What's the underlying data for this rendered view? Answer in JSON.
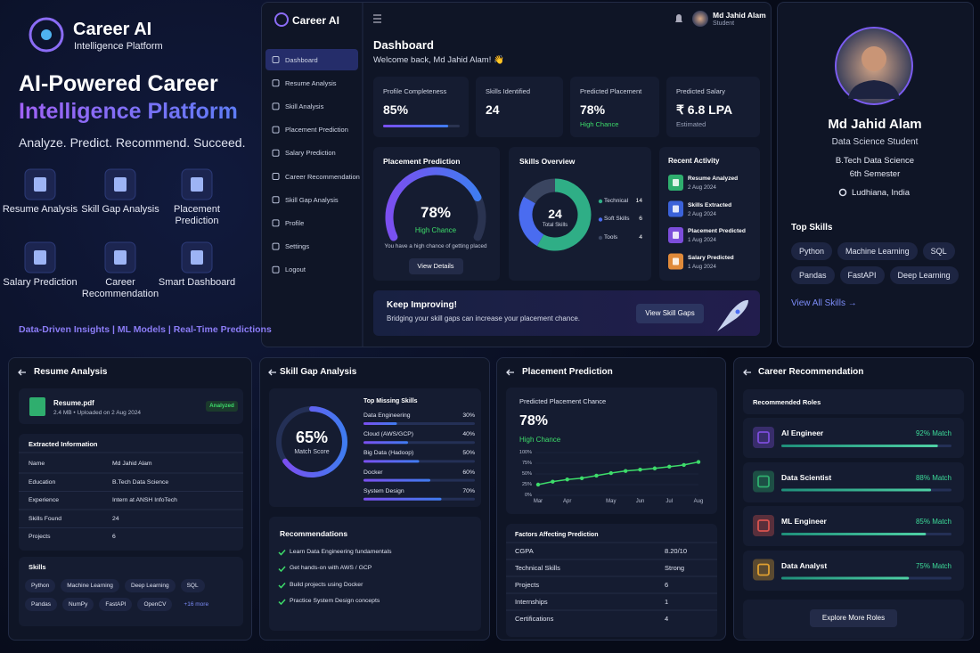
{
  "hero": {
    "brand": "Career AI",
    "brand_sub": "Intelligence Platform",
    "title_1": "AI-Powered Career",
    "title_2": "Intelligence Platform",
    "tagline": "Analyze. Predict. Recommend. Succeed.",
    "features": [
      "Resume Analysis",
      "Skill Gap Analysis",
      "Placement Prediction",
      "Salary Prediction",
      "Career Recommendation",
      "Smart Dashboard"
    ],
    "footer": "Data-Driven Insights | ML Models | Real-Time Predictions"
  },
  "app": {
    "brand": "Career AI",
    "nav": [
      "Dashboard",
      "Resume Analysis",
      "Skill Analysis",
      "Placement Prediction",
      "Salary Prediction",
      "Career Recommendation",
      "Skill Gap Analysis",
      "Profile",
      "Settings",
      "Logout"
    ],
    "user_name": "Md Jahid Alam",
    "user_role": "Student",
    "heading": "Dashboard",
    "welcome": "Welcome back, Md Jahid Alam! 👋",
    "stats": [
      {
        "label": "Profile Completeness",
        "value": 85,
        "value_label": "85%"
      },
      {
        "label": "Skills Identified",
        "value": 24
      },
      {
        "label": "Predicted Placement",
        "value": "78%",
        "note": "High Chance"
      },
      {
        "label": "Predicted Salary",
        "value": "₹ 6.8 LPA",
        "note": "Estimated"
      }
    ],
    "placement": {
      "title": "Placement Prediction",
      "value": 78,
      "value_label": "78%",
      "status": "High Chance",
      "note": "You have a high chance of getting placed",
      "button": "View Details"
    },
    "skills_overview": {
      "title": "Skills Overview",
      "total": 24,
      "total_label": "Total Skills",
      "segments": [
        {
          "name": "Technical",
          "value": 14,
          "color": "#2fae86"
        },
        {
          "name": "Soft Skills",
          "value": 6,
          "color": "#4a6cf0"
        },
        {
          "name": "Tools",
          "value": 4,
          "color": "#3a4560"
        }
      ]
    },
    "activity": {
      "title": "Recent Activity",
      "items": [
        {
          "title": "Resume Analyzed",
          "date": "2 Aug 2024",
          "color": "#2fae6e"
        },
        {
          "title": "Skills Extracted",
          "date": "2 Aug 2024",
          "color": "#3b62d9"
        },
        {
          "title": "Placement Predicted",
          "date": "1 Aug 2024",
          "color": "#7c4ddb"
        },
        {
          "title": "Salary Predicted",
          "date": "1 Aug 2024",
          "color": "#e08a3a"
        }
      ]
    },
    "banner": {
      "title": "Keep Improving!",
      "text": "Bridging your skill gaps can increase your placement chance.",
      "button": "View Skill Gaps"
    }
  },
  "profile": {
    "name": "Md Jahid Alam",
    "role": "Data Science Student",
    "degree": "B.Tech Data Science",
    "semester": "6th Semester",
    "location": "Ludhiana, India",
    "skills_title": "Top Skills",
    "skills": [
      "Python",
      "Machine Learning",
      "SQL",
      "Pandas",
      "FastAPI",
      "Deep Learning"
    ],
    "link": "View All Skills →"
  },
  "resume": {
    "title": "Resume Analysis",
    "file": "Resume.pdf",
    "file_meta": "2.4 MB • Uploaded on 2 Aug 2024",
    "status": "Analyzed",
    "info_title": "Extracted Information",
    "rows": [
      [
        "Name",
        "Md Jahid Alam"
      ],
      [
        "Education",
        "B.Tech Data Science"
      ],
      [
        "Experience",
        "Intern at ANSH InfoTech"
      ],
      [
        "Skills Found",
        "24"
      ],
      [
        "Projects",
        "6"
      ]
    ],
    "skills_title": "Skills",
    "skills": [
      "Python",
      "Machine Learning",
      "Deep Learning",
      "SQL",
      "Pandas",
      "NumPy",
      "FastAPI",
      "OpenCV"
    ],
    "more": "+16 more"
  },
  "skill_gap": {
    "title": "Skill Gap Analysis",
    "score": 65,
    "score_label": "65%",
    "score_caption": "Match Score",
    "missing_title": "Top Missing Skills",
    "missing": [
      {
        "name": "Data Engineering",
        "value": 30,
        "value_label": "30%"
      },
      {
        "name": "Cloud (AWS/GCP)",
        "value": 40,
        "value_label": "40%"
      },
      {
        "name": "Big Data (Hadoop)",
        "value": 50,
        "value_label": "50%"
      },
      {
        "name": "Docker",
        "value": 60,
        "value_label": "60%"
      },
      {
        "name": "System Design",
        "value": 70,
        "value_label": "70%"
      }
    ],
    "rec_title": "Recommendations",
    "recs": [
      "Learn Data Engineering fundamentals",
      "Get hands-on with AWS / GCP",
      "Build projects using Docker",
      "Practice System Design concepts"
    ]
  },
  "prediction": {
    "title": "Placement Prediction",
    "chart_title": "Predicted Placement Chance",
    "value": "78%",
    "status": "High Chance",
    "chart": {
      "type": "line",
      "categories": [
        "Mar",
        null,
        "Apr",
        null,
        null,
        "May",
        null,
        "Jun",
        null,
        "Jul",
        null,
        "Aug"
      ],
      "values": [
        25,
        32,
        37,
        40,
        46,
        52,
        57,
        60,
        63,
        67,
        71,
        78
      ],
      "color": "#3ddc6a",
      "ylim": [
        0,
        100
      ],
      "yticks": [
        {
          "value": 0,
          "label": "0%"
        },
        {
          "value": 25,
          "label": "25%"
        },
        {
          "value": 50,
          "label": "50%"
        },
        {
          "value": 75,
          "label": "75%"
        },
        {
          "value": 100,
          "label": "100%"
        }
      ]
    },
    "factors_title": "Factors Affecting Prediction",
    "factors": [
      [
        "CGPA",
        "8.20/10"
      ],
      [
        "Technical Skills",
        "Strong"
      ],
      [
        "Projects",
        "6"
      ],
      [
        "Internships",
        "1"
      ],
      [
        "Certifications",
        "4"
      ]
    ]
  },
  "career": {
    "title": "Career Recommendation",
    "sub": "Recommended Roles",
    "roles": [
      {
        "name": "AI Engineer",
        "value": 92,
        "value_label": "92% Match",
        "color": "#7c4ddb"
      },
      {
        "name": "Data Scientist",
        "value": 88,
        "value_label": "88% Match",
        "color": "#2fae6e"
      },
      {
        "name": "ML Engineer",
        "value": 85,
        "value_label": "85% Match",
        "color": "#d9534f"
      },
      {
        "name": "Data Analyst",
        "value": 75,
        "value_label": "75% Match",
        "color": "#e0a030"
      }
    ],
    "button": "Explore More Roles"
  }
}
